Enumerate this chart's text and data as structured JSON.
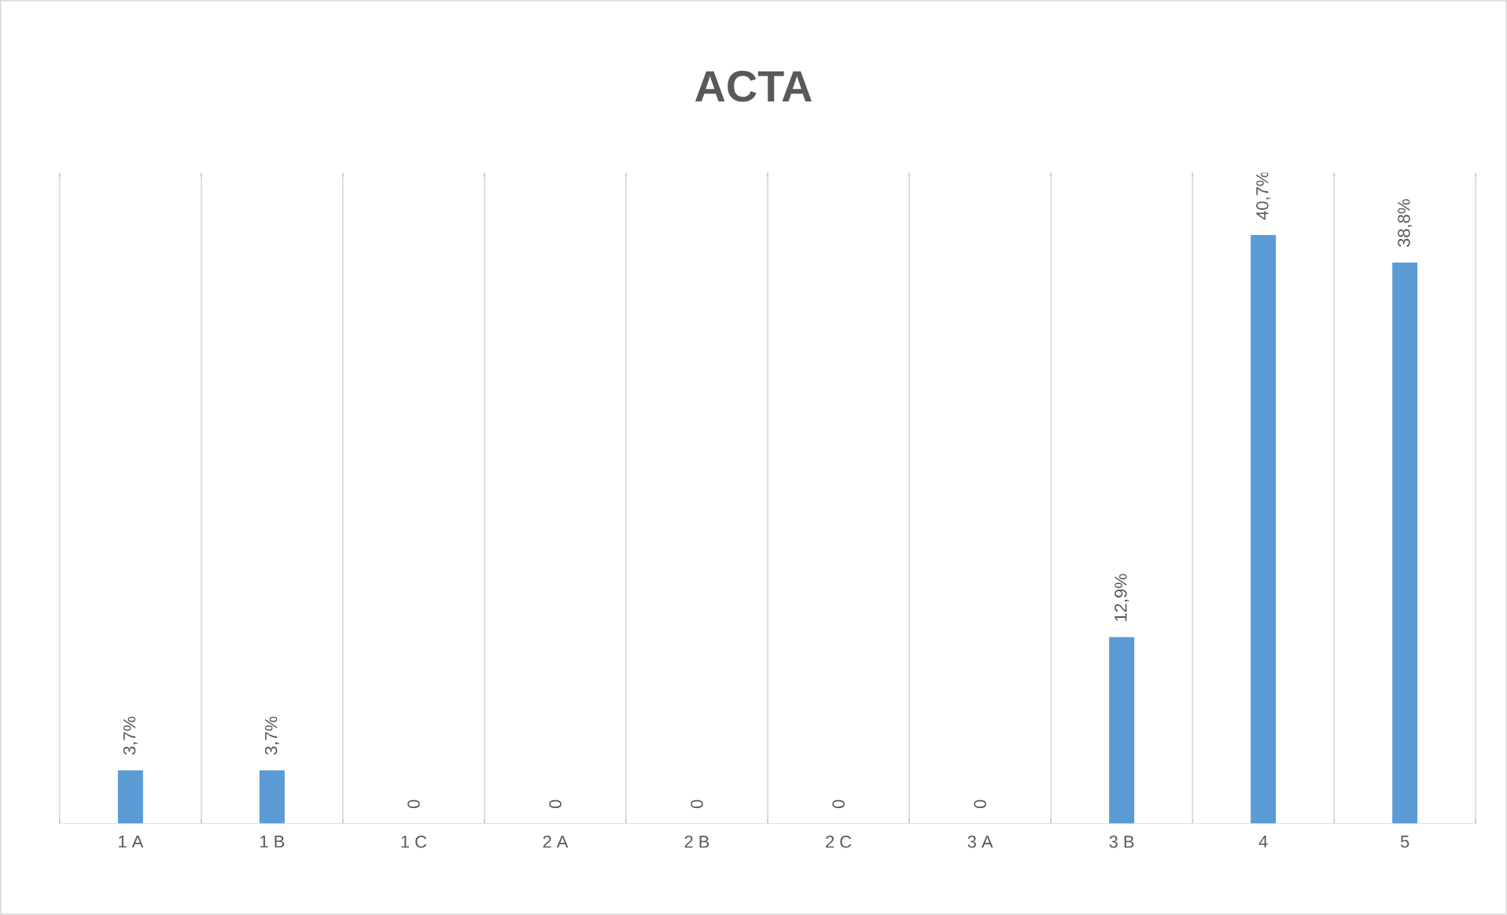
{
  "chart_data": {
    "type": "bar",
    "title": "ACTA",
    "categories": [
      "1 A",
      "1 B",
      "1 C",
      "2 A",
      "2 B",
      "2 C",
      "3 A",
      "3 B",
      "4",
      "5"
    ],
    "values": [
      3.7,
      3.7,
      0,
      0,
      0,
      0,
      0,
      12.9,
      40.7,
      38.8
    ],
    "value_labels": [
      "3,7%",
      "3,7%",
      "0",
      "0",
      "0",
      "0",
      "0",
      "12,9%",
      "40,7%",
      "38,8%"
    ],
    "color": "#5b9bd5",
    "ylim": [
      0,
      45
    ],
    "grid": "x",
    "tick_labels": "x"
  }
}
